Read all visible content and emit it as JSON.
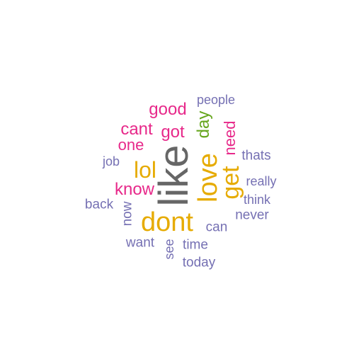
{
  "words": {
    "like": {
      "text": "like",
      "color": "#666666",
      "rotated": true
    },
    "dont": {
      "text": "dont",
      "color": "#e6ab02",
      "rotated": false
    },
    "love": {
      "text": "love",
      "color": "#e6ab02",
      "rotated": true
    },
    "get": {
      "text": "get",
      "color": "#e6ab02",
      "rotated": true
    },
    "lol": {
      "text": "lol",
      "color": "#e6ab02",
      "rotated": false
    },
    "good": {
      "text": "good",
      "color": "#e7298a",
      "rotated": false
    },
    "got": {
      "text": "got",
      "color": "#e7298a",
      "rotated": false
    },
    "cant": {
      "text": "cant",
      "color": "#e7298a",
      "rotated": false
    },
    "know": {
      "text": "know",
      "color": "#e7298a",
      "rotated": false
    },
    "one": {
      "text": "one",
      "color": "#e7298a",
      "rotated": false
    },
    "day": {
      "text": "day",
      "color": "#66a61e",
      "rotated": true
    },
    "need": {
      "text": "need",
      "color": "#e7298a",
      "rotated": true
    },
    "people": {
      "text": "people",
      "color": "#7570b3",
      "rotated": false
    },
    "thats": {
      "text": "thats",
      "color": "#7570b3",
      "rotated": false
    },
    "job": {
      "text": "job",
      "color": "#7570b3",
      "rotated": false
    },
    "really": {
      "text": "really",
      "color": "#7570b3",
      "rotated": false
    },
    "think": {
      "text": "think",
      "color": "#7570b3",
      "rotated": false
    },
    "back": {
      "text": "back",
      "color": "#7570b3",
      "rotated": false
    },
    "now": {
      "text": "now",
      "color": "#7570b3",
      "rotated": true
    },
    "never": {
      "text": "never",
      "color": "#7570b3",
      "rotated": false
    },
    "can": {
      "text": "can",
      "color": "#7570b3",
      "rotated": false
    },
    "want": {
      "text": "want",
      "color": "#7570b3",
      "rotated": false
    },
    "see": {
      "text": "see",
      "color": "#7570b3",
      "rotated": true
    },
    "time": {
      "text": "time",
      "color": "#7570b3",
      "rotated": false
    },
    "today": {
      "text": "today",
      "color": "#7570b3",
      "rotated": false
    }
  }
}
